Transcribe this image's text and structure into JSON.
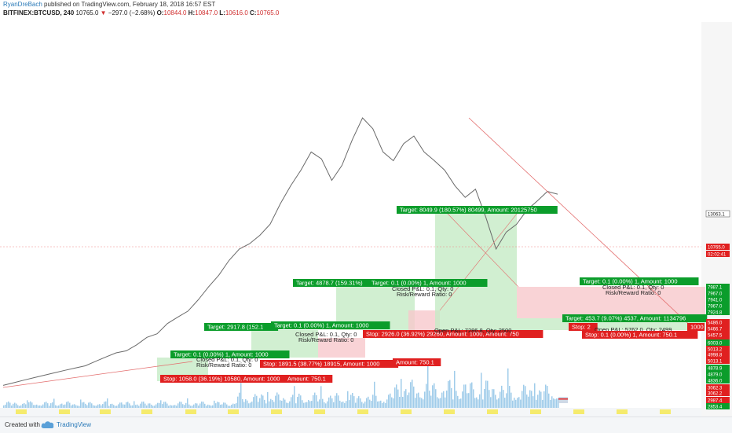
{
  "header": {
    "author": "RyanDreBach",
    "published": "published on TradingView.com, February 18, 2018 16:57 EST",
    "symbol": "BITFINEX:BTCUSD, 240",
    "last": "10765.0",
    "change": "−297.0 (−2.68%)",
    "open_label": "O:",
    "open": "10844.0",
    "high_label": "H:",
    "high": "10847.0",
    "low_label": "L:",
    "low": "10616.0",
    "close_label": "C:",
    "close": "10765.0"
  },
  "footer": {
    "created": "Created with",
    "brand": "TradingView"
  },
  "colors": {
    "up": "#0b9d2b",
    "down": "#e02020",
    "profit_zone": "#c6ebc6",
    "loss_zone": "#f8c8cc",
    "volume": "#8fc3e6",
    "trend": "#e36d6d"
  },
  "chart_data": {
    "type": "line",
    "series": [
      {
        "values": [
          2400,
          2450,
          2500,
          2550,
          2600,
          2650,
          2700,
          2750,
          2800,
          2900,
          3000,
          3100,
          3150,
          3300,
          3500,
          3600,
          3900,
          4100,
          4300,
          4700,
          5200,
          5700,
          6400,
          7000,
          7300,
          7800,
          8500,
          10000,
          11500,
          13000,
          15000,
          14200,
          12000,
          13500,
          16500,
          19600,
          18000,
          15000,
          14000,
          16000,
          17000,
          15000,
          14000,
          13000,
          11500,
          10500,
          11200,
          9000,
          7000,
          8000,
          8500,
          9500,
          10200,
          11000,
          10765
        ]
      }
    ],
    "y_tick_labels": [
      "13063.1",
      "10765.0",
      "02:02:41",
      "7987.1",
      "7967.0",
      "7941.0",
      "7924.8",
      "7967.0",
      "5486.0",
      "5466.7",
      "5457.5",
      "5002.8",
      "6003.0",
      "5013.2",
      "4998.8",
      "5013.1",
      "4878.9",
      "4879.0",
      "4836.0",
      "3062.3",
      "3062.2",
      "2987.4",
      "2853.4"
    ],
    "positions": [
      {
        "target": "Target: 0.1 (0.00%) 1, Amount: 1000",
        "stop": "Stop: 1058.0 (36.19%) 10580, Amount: 1000",
        "pnl": [
          "Closed P&L: 0.1, Qty: 0",
          "Risk/Reward Ratio: 0"
        ],
        "pnl_tail": "Amount: 750.1"
      },
      {
        "target": "Target: 2917.8 (152.1",
        "target2": "Target: 0.1 (0.00%) 1, Amount: 1000",
        "stop": "Stop: 1891.5 (38.77%) 18915, Amount: 1000",
        "pnl": [
          "Closed P&L: 0.1, Qty: 0",
          "Risk/Reward Ratio: 0"
        ],
        "pnl_tail": "Amount: 750.1"
      },
      {
        "target": "Target: 4878.7 (159.31%)",
        "target2": "Target: 0.1 (0.00%) 1, Amount: 1000",
        "stop": "Stop: 2926.0 (36.92%) 29260, Amount: 1000, Amount: 750",
        "pnl": [
          "Closed P&L: 0.1, Qty: 0",
          "Risk/Reward Ratio: 0"
        ],
        "open": "Open P&L: 7286.8, Qty: 2500"
      },
      {
        "target": "Target: 8049.9 (180.57%) 80499, Amount: 20125750"
      },
      {
        "target": "Target: 453.7 (9.07%) 4537, Amount: 1134796",
        "target2": "Target: 0.1 (0.00%) 1, Amount: 1000",
        "stop": "Stop: 0.1 (0.00%) 1, Amount: 750.1",
        "stop_head": "Stop: 2",
        "pnl": [
          "Closed P&L: 0.1, Qty: 0",
          "Risk/Reward Ratio: 0"
        ],
        "open": "Open P&L: 5762.0, Qty: 2499",
        "open_tail": "1000"
      }
    ]
  }
}
